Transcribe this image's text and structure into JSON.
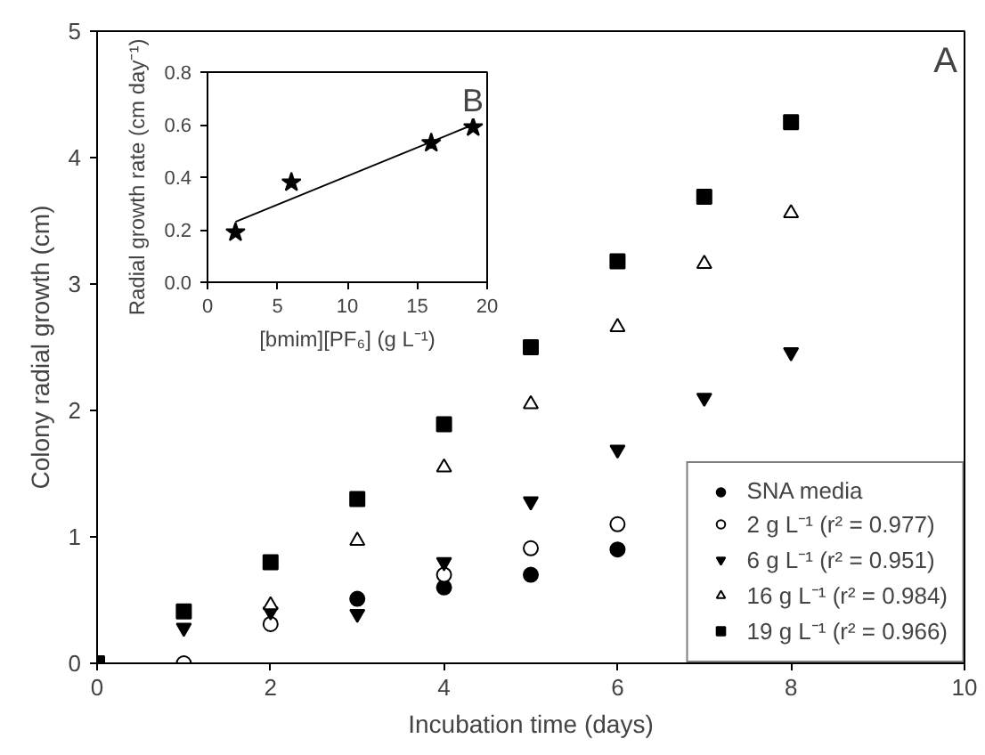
{
  "chart_data": [
    {
      "type": "scatter",
      "xlabel": "Incubation time (days)",
      "ylabel": "Colony radial growth (cm)",
      "x": [
        0,
        1,
        2,
        3,
        4,
        5,
        6,
        7,
        8
      ],
      "xlim": [
        0,
        10
      ],
      "xticks": [
        0,
        2,
        4,
        6,
        8,
        10
      ],
      "ylim": [
        0,
        5
      ],
      "yticks": [
        0,
        1,
        2,
        3,
        4,
        5
      ],
      "grid": false,
      "legend": "bottom right",
      "annotations": [
        "A"
      ],
      "series": [
        {
          "name": "SNA media",
          "color": "#000000",
          "marker": "circle",
          "values": [
            null,
            null,
            null,
            0.51,
            0.6,
            0.7,
            0.9,
            null,
            null
          ]
        },
        {
          "name": "2 g L⁻¹ (r² = 0.977)",
          "color": "#000000",
          "marker": "circle",
          "values": [
            null,
            0,
            0.31,
            null,
            0.7,
            0.91,
            1.1,
            null,
            null
          ]
        },
        {
          "name": "6 g L⁻¹ (r² = 0.951)",
          "color": "#000000",
          "marker": "triangle",
          "values": [
            null,
            0.28,
            0.41,
            0.39,
            0.8,
            1.28,
            1.69,
            2.1,
            2.46
          ]
        },
        {
          "name": "16 g L⁻¹ (r² = 0.984)",
          "color": "#000000",
          "marker": "triangle",
          "values": [
            null,
            null,
            0.46,
            0.97,
            1.55,
            2.05,
            2.66,
            3.16,
            3.56
          ]
        },
        {
          "name": "19 g L⁻¹ (r² = 0.966)",
          "color": "#000000",
          "marker": "square",
          "values": [
            0,
            0.41,
            0.8,
            1.3,
            1.89,
            2.5,
            3.18,
            3.69,
            4.28
          ]
        }
      ]
    },
    {
      "type": "scatter",
      "xlabel": "[bmim][PF₆] (g L⁻¹)",
      "ylabel": "Radial growth rate (cm day⁻¹)",
      "xlim": [
        0,
        20
      ],
      "xticks": [
        0,
        5,
        10,
        15,
        20
      ],
      "ylim": [
        0,
        0.8
      ],
      "yticks": [
        {
          "value": 0,
          "label": "0.0"
        },
        0.2,
        0.4,
        0.6,
        0.8
      ],
      "grid": false,
      "legend": false,
      "annotations": [
        "B"
      ],
      "series": [
        {
          "color": "#000000",
          "marker": "star",
          "x": [
            2,
            6,
            16,
            19
          ],
          "values": [
            0.19,
            0.38,
            0.53,
            0.59
          ]
        },
        {
          "type": "line",
          "color": "#000000",
          "line_style": "solid",
          "x": [
            2,
            19
          ],
          "values": [
            0.23,
            0.6
          ]
        }
      ]
    }
  ]
}
